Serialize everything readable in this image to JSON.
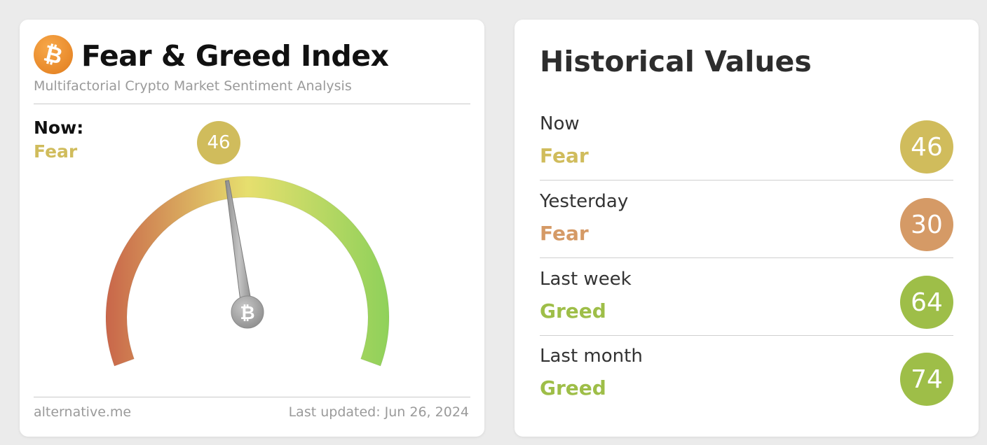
{
  "fear_greed": {
    "title": "Fear & Greed Index",
    "subtitle": "Multifactorial Crypto Market Sentiment Analysis",
    "logo_icon": "bitcoin-icon",
    "now_label": "Now:",
    "now_classification": "Fear",
    "value": "46",
    "gauge_value": 46,
    "gauge_range": [
      0,
      100
    ],
    "footer_source": "alternative.me",
    "footer_updated": "Last updated: Jun 26, 2024",
    "colors": {
      "fear": "#d0bc5c",
      "gauge_low": "#c9664a",
      "gauge_mid": "#e6df6e",
      "gauge_high": "#8fd15a"
    }
  },
  "historical": {
    "title": "Historical Values",
    "rows": [
      {
        "period": "Now",
        "classification": "Fear",
        "value": "46",
        "color": "#d0bc5c"
      },
      {
        "period": "Yesterday",
        "classification": "Fear",
        "value": "30",
        "color": "#d59a66"
      },
      {
        "period": "Last week",
        "classification": "Greed",
        "value": "64",
        "color": "#9ebe48"
      },
      {
        "period": "Last month",
        "classification": "Greed",
        "value": "74",
        "color": "#9ebe48"
      }
    ]
  }
}
